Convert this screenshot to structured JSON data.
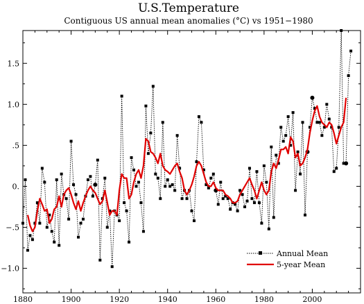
{
  "chart_data": {
    "type": "line",
    "title": "U.S.Temperature",
    "subtitle": "Contiguous US annual mean anomalies (°C) vs 1951−1980",
    "xlabel": "",
    "ylabel": "",
    "xlim": [
      1880,
      2020
    ],
    "ylim": [
      -1.3,
      1.9
    ],
    "x_ticks": [
      1880,
      1900,
      1920,
      1940,
      1960,
      1980,
      2000
    ],
    "x_tick_labels": [
      "1880",
      "1900",
      "1920",
      "1940",
      "1960",
      "1980",
      "2000"
    ],
    "y_ticks": [
      -1.0,
      -0.5,
      0.0,
      0.5,
      1.0,
      1.5
    ],
    "y_tick_labels": [
      "−1.0",
      "−.5",
      "0.",
      ".5",
      "1.0",
      "1.5"
    ],
    "grid": false,
    "legend_position": "bottom-right",
    "series": [
      {
        "name": "Annual Mean",
        "style": "dotted line with square markers",
        "color": "#000000",
        "x": [
          1880,
          1881,
          1882,
          1883,
          1884,
          1885,
          1886,
          1887,
          1888,
          1889,
          1890,
          1891,
          1892,
          1893,
          1894,
          1895,
          1896,
          1897,
          1898,
          1899,
          1900,
          1901,
          1902,
          1903,
          1904,
          1905,
          1906,
          1907,
          1908,
          1909,
          1910,
          1911,
          1912,
          1913,
          1914,
          1915,
          1916,
          1917,
          1918,
          1919,
          1920,
          1921,
          1922,
          1923,
          1924,
          1925,
          1926,
          1927,
          1928,
          1929,
          1930,
          1931,
          1932,
          1933,
          1934,
          1935,
          1936,
          1937,
          1938,
          1939,
          1940,
          1941,
          1942,
          1943,
          1944,
          1945,
          1946,
          1947,
          1948,
          1949,
          1950,
          1951,
          1952,
          1953,
          1954,
          1955,
          1956,
          1957,
          1958,
          1959,
          1960,
          1961,
          1962,
          1963,
          1964,
          1965,
          1966,
          1967,
          1968,
          1969,
          1970,
          1971,
          1972,
          1973,
          1974,
          1975,
          1976,
          1977,
          1978,
          1979,
          1980,
          1981,
          1982,
          1983,
          1984,
          1985,
          1986,
          1987,
          1988,
          1989,
          1990,
          1991,
          1992,
          1993,
          1994,
          1995,
          1996,
          1997,
          1998,
          1999,
          2000,
          2001,
          2002,
          2003,
          2004,
          2005,
          2006,
          2007,
          2008,
          2009,
          2010,
          2011,
          2012,
          2013,
          2014,
          2015,
          2016
        ],
        "values": [
          -0.45,
          0.08,
          -0.78,
          -0.6,
          -0.65,
          -0.45,
          -0.2,
          -0.45,
          0.22,
          0.05,
          -0.5,
          -0.35,
          -0.55,
          -0.68,
          0.08,
          -0.72,
          0.15,
          -0.1,
          -0.15,
          -0.4,
          0.55,
          0.02,
          -0.1,
          -0.62,
          -0.45,
          -0.4,
          -0.12,
          0.08,
          0.12,
          -0.12,
          0.02,
          0.32,
          -0.9,
          -0.15,
          0.1,
          -0.5,
          -0.3,
          -0.98,
          -0.3,
          -0.35,
          -0.42,
          1.1,
          -0.2,
          -0.3,
          -0.68,
          0.35,
          0.2,
          0.0,
          0.05,
          -0.2,
          -0.55,
          0.98,
          0.4,
          0.65,
          1.22,
          0.15,
          0.1,
          -0.15,
          0.78,
          0.0,
          0.08,
          0.0,
          0.02,
          -0.05,
          0.62,
          0.22,
          -0.15,
          -0.05,
          -0.15,
          -0.05,
          -0.3,
          -0.42,
          0.3,
          0.85,
          0.78,
          0.2,
          0.02,
          -0.02,
          0.1,
          0.15,
          -0.05,
          -0.22,
          0.05,
          -0.15,
          -0.12,
          -0.15,
          -0.28,
          -0.2,
          -0.22,
          -0.3,
          -0.05,
          -0.1,
          -0.25,
          -0.18,
          0.22,
          -0.15,
          -0.2,
          0.18,
          -0.2,
          -0.45,
          0.25,
          0.05,
          -0.52,
          0.48,
          -0.38,
          0.38,
          0.28,
          0.72,
          0.55,
          0.62,
          0.85,
          0.5,
          0.9,
          -0.05,
          0.42,
          0.15,
          0.78,
          -0.35,
          0.42,
          0.72,
          1.08,
          0.95,
          0.78,
          0.78,
          0.62,
          0.72,
          1.0,
          0.82,
          0.72,
          0.18,
          0.22,
          0.72,
          1.9,
          0.28,
          0.28,
          1.35,
          1.65
        ],
        "markers_filled_circle_years": [
          1910,
          1960,
          1998,
          2000,
          2014
        ]
      },
      {
        "name": "5-year Mean",
        "style": "solid thick line",
        "color": "#e00000",
        "x": [
          1882,
          1883,
          1884,
          1885,
          1886,
          1887,
          1888,
          1889,
          1890,
          1891,
          1892,
          1893,
          1894,
          1895,
          1896,
          1897,
          1898,
          1899,
          1900,
          1901,
          1902,
          1903,
          1904,
          1905,
          1906,
          1907,
          1908,
          1909,
          1910,
          1911,
          1912,
          1913,
          1914,
          1915,
          1916,
          1917,
          1918,
          1919,
          1920,
          1921,
          1922,
          1923,
          1924,
          1925,
          1926,
          1927,
          1928,
          1929,
          1930,
          1931,
          1932,
          1933,
          1934,
          1935,
          1936,
          1937,
          1938,
          1939,
          1940,
          1941,
          1942,
          1943,
          1944,
          1945,
          1946,
          1947,
          1948,
          1949,
          1950,
          1951,
          1952,
          1953,
          1954,
          1955,
          1956,
          1957,
          1958,
          1959,
          1960,
          1961,
          1962,
          1963,
          1964,
          1965,
          1966,
          1967,
          1968,
          1969,
          1970,
          1971,
          1972,
          1973,
          1974,
          1975,
          1976,
          1977,
          1978,
          1979,
          1980,
          1981,
          1982,
          1983,
          1984,
          1985,
          1986,
          1987,
          1988,
          1989,
          1990,
          1991,
          1992,
          1993,
          1994,
          1995,
          1996,
          1997,
          1998,
          1999,
          2000,
          2001,
          2002,
          2003,
          2004,
          2005,
          2006,
          2007,
          2008,
          2009,
          2010,
          2011,
          2012,
          2013,
          2014
        ],
        "values": [
          -0.35,
          -0.48,
          -0.55,
          -0.5,
          -0.3,
          -0.15,
          -0.22,
          -0.3,
          -0.28,
          -0.45,
          -0.4,
          -0.28,
          -0.25,
          -0.12,
          -0.25,
          -0.1,
          -0.05,
          -0.02,
          -0.1,
          -0.2,
          -0.28,
          -0.18,
          -0.3,
          -0.2,
          -0.12,
          -0.05,
          0.0,
          -0.05,
          -0.08,
          -0.15,
          -0.22,
          -0.18,
          -0.05,
          -0.2,
          -0.35,
          -0.3,
          -0.3,
          -0.35,
          -0.05,
          0.15,
          0.1,
          0.1,
          -0.15,
          -0.1,
          0.05,
          0.15,
          0.2,
          0.1,
          0.25,
          0.58,
          0.55,
          0.42,
          0.4,
          0.35,
          0.28,
          0.4,
          0.25,
          0.2,
          0.18,
          0.15,
          0.2,
          0.25,
          0.28,
          0.18,
          0.1,
          -0.05,
          -0.1,
          -0.05,
          0.02,
          0.12,
          0.25,
          0.3,
          0.25,
          0.15,
          0.05,
          0.0,
          0.0,
          0.05,
          -0.02,
          -0.05,
          -0.05,
          -0.05,
          -0.1,
          -0.12,
          -0.15,
          -0.2,
          -0.2,
          -0.18,
          -0.1,
          -0.05,
          0.0,
          0.05,
          0.1,
          0.02,
          -0.05,
          -0.15,
          -0.05,
          0.05,
          -0.05,
          -0.1,
          -0.05,
          0.18,
          0.28,
          0.22,
          0.32,
          0.45,
          0.45,
          0.48,
          0.4,
          0.6,
          0.55,
          0.35,
          0.4,
          0.25,
          0.28,
          0.35,
          0.45,
          0.65,
          0.8,
          0.92,
          0.98,
          0.85,
          0.78,
          0.75,
          0.72,
          0.78,
          0.75,
          0.65,
          0.52,
          0.62,
          0.72,
          0.78,
          1.08
        ]
      }
    ]
  }
}
